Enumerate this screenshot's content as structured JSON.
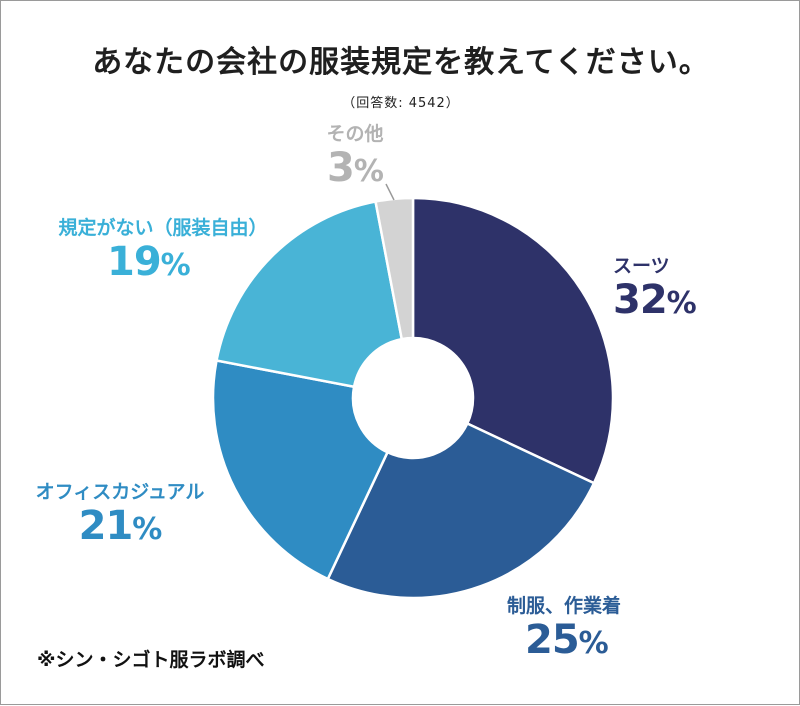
{
  "chart_data": {
    "type": "pie",
    "title": "あなたの会社の服装規定を教えてください。",
    "subtitle": "（回答数: 4542）",
    "slices": [
      {
        "label": "スーツ",
        "value": 32,
        "value_label": "32",
        "color": "#2e3269"
      },
      {
        "label": "制服、作業着",
        "value": 25,
        "value_label": "25",
        "color": "#2b5c96"
      },
      {
        "label": "オフィスカジュアル",
        "value": 21,
        "value_label": "21",
        "color": "#2f8cc3"
      },
      {
        "label": "規定がない（服装自由）",
        "value": 19,
        "value_label": "19",
        "color": "#49b4d6"
      },
      {
        "label": "その他",
        "value": 3,
        "value_label": "3",
        "color": "#d3d3d3"
      }
    ],
    "unit": "%",
    "label_colors": {
      "スーツ": "#2e3269",
      "制服、作業着": "#2b5c96",
      "オフィスカジュアル": "#2f8cc3",
      "規定がない（服装自由）": "#3ab0d8",
      "その他": "#b3b3b3"
    },
    "source_note": "※シン・シゴト服ラボ調べ"
  }
}
